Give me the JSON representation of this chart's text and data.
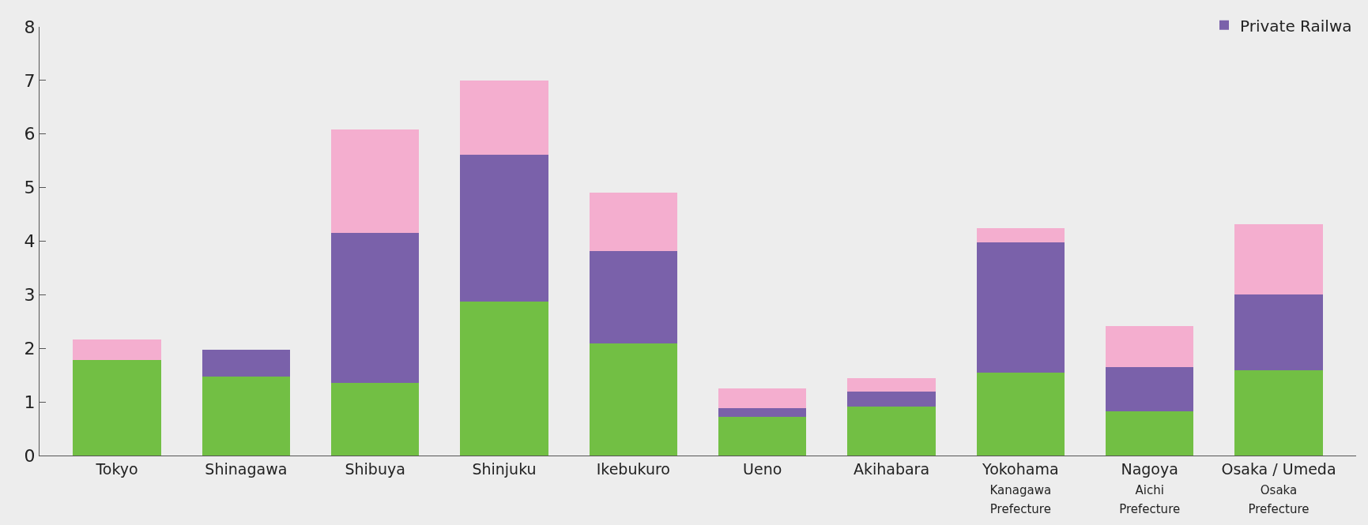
{
  "chart_data": {
    "type": "bar",
    "stacked": true,
    "categories": [
      "Tokyo",
      "Shinagawa",
      "Shibuya",
      "Shinjuku",
      "Ikebukuro",
      "Ueno",
      "Akihabara",
      "Yokohama\nKanagawa\nPrefecture",
      "Nagoya\nAichi\nPrefecture",
      "Osaka / Umeda\nOsaka\nPrefecture"
    ],
    "series": [
      {
        "color": "#72bf44",
        "values": [
          1.78,
          1.47,
          1.36,
          2.88,
          2.09,
          0.72,
          0.92,
          1.54,
          0.82,
          1.59
        ]
      },
      {
        "name": "Private Railwa",
        "color": "#7a61aa",
        "values": [
          0,
          0.51,
          2.79,
          2.73,
          1.73,
          0.17,
          0.28,
          2.44,
          0.83,
          1.42
        ]
      },
      {
        "color": "#f4aecf",
        "values": [
          0.39,
          0,
          1.93,
          1.39,
          1.08,
          0.36,
          0.24,
          0.27,
          0.77,
          1.31
        ]
      }
    ],
    "ylim": [
      0,
      8
    ],
    "yticks": [
      0,
      1,
      2,
      3,
      4,
      5,
      6,
      7,
      8
    ],
    "grid": false,
    "legend": "top right"
  }
}
